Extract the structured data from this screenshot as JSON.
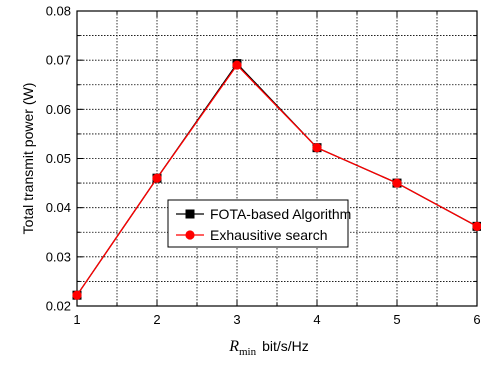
{
  "chart_data": {
    "type": "line",
    "title": "",
    "xlabel_symbol": "R",
    "xlabel_subscript": "min",
    "xlabel_unit": "bit/s/Hz",
    "ylabel": "Total transmit  power (W)",
    "xlim": [
      1,
      6
    ],
    "ylim": [
      0.02,
      0.08
    ],
    "xticks": [
      1,
      2,
      3,
      4,
      5,
      6
    ],
    "yticks": [
      0.02,
      0.03,
      0.04,
      0.05,
      0.06,
      0.07,
      0.08
    ],
    "xtick_labels": [
      "1",
      "2",
      "3",
      "4",
      "5",
      "6"
    ],
    "ytick_labels": [
      "0.02",
      "0.03",
      "0.04",
      "0.05",
      "0.06",
      "0.07",
      "0.08"
    ],
    "grid": true,
    "legend_position": "lower-center",
    "x": [
      1,
      2,
      3,
      4,
      5,
      6
    ],
    "series": [
      {
        "name": "FOTA-based Algorithm",
        "values": [
          0.0222,
          0.046,
          0.0693,
          0.0522,
          0.045,
          0.0362
        ],
        "color": "#000000",
        "marker": "square"
      },
      {
        "name": "Exhausitive  search",
        "values": [
          0.0222,
          0.046,
          0.069,
          0.0522,
          0.045,
          0.0362
        ],
        "color": "#ff0000",
        "marker": "circle"
      }
    ]
  }
}
